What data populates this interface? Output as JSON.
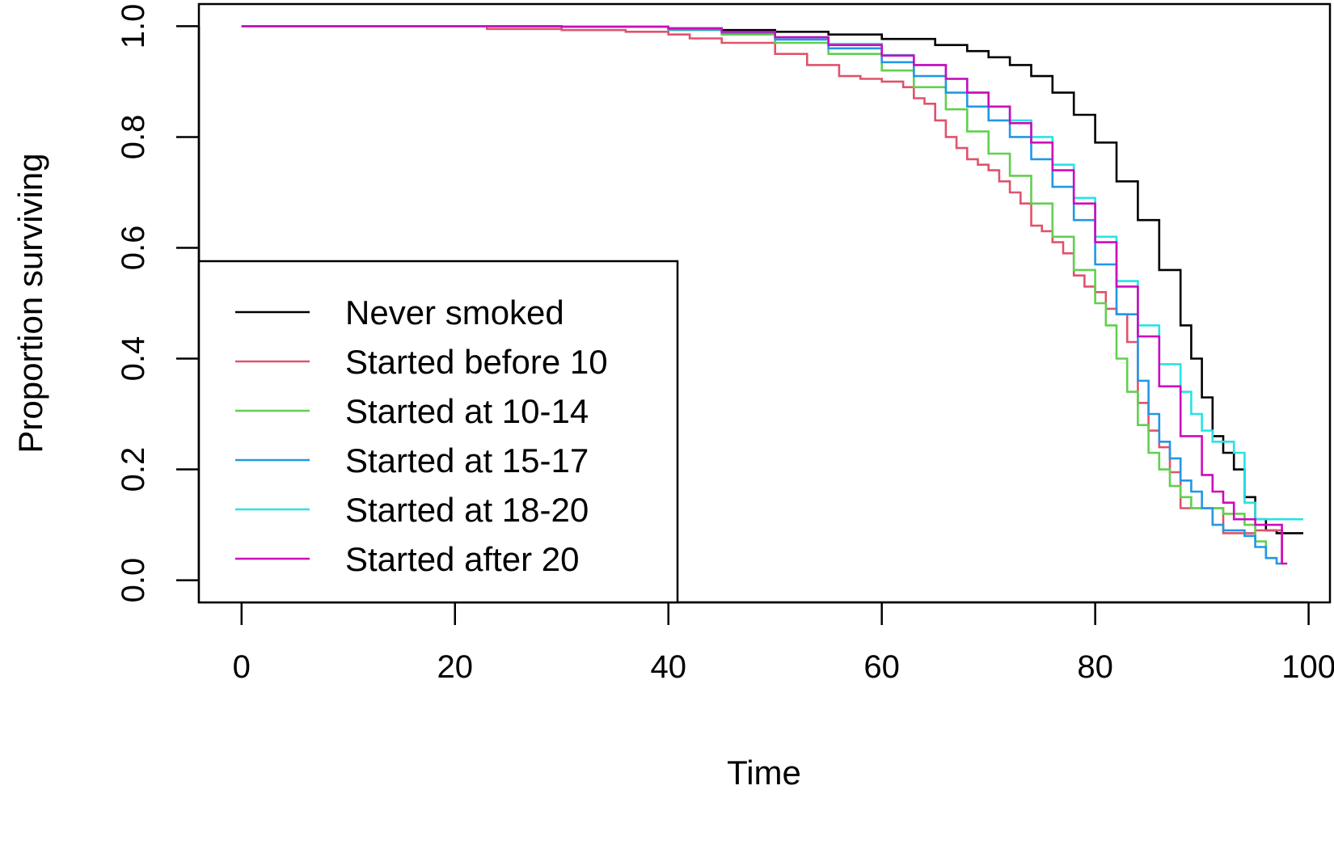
{
  "chart_data": {
    "type": "line",
    "step": true,
    "title": "",
    "xlabel": "Time",
    "ylabel": "Proportion surviving",
    "xlim": [
      -4,
      102
    ],
    "ylim": [
      -0.04,
      1.04
    ],
    "xticks": [
      0,
      20,
      40,
      60,
      80,
      100
    ],
    "xtick_labels": [
      "0",
      "20",
      "40",
      "60",
      "80",
      "100"
    ],
    "yticks": [
      0.0,
      0.2,
      0.4,
      0.6,
      0.8,
      1.0
    ],
    "ytick_labels": [
      "0.0",
      "0.2",
      "0.4",
      "0.6",
      "0.8",
      "1.0"
    ],
    "grid": false,
    "legend_position": "bottom-left",
    "series": [
      {
        "name": "Never smoked",
        "color": "#000000",
        "x": [
          0,
          20,
          30,
          40,
          45,
          50,
          55,
          60,
          65,
          68,
          70,
          72,
          74,
          76,
          78,
          80,
          82,
          84,
          86,
          88,
          89,
          90,
          91,
          92,
          93,
          94,
          95,
          96,
          97,
          99.5
        ],
        "y": [
          1.0,
          1.0,
          0.999,
          0.996,
          0.993,
          0.99,
          0.985,
          0.977,
          0.966,
          0.955,
          0.944,
          0.93,
          0.91,
          0.88,
          0.84,
          0.79,
          0.72,
          0.65,
          0.56,
          0.46,
          0.4,
          0.33,
          0.26,
          0.23,
          0.2,
          0.15,
          0.11,
          0.09,
          0.085,
          0.085
        ]
      },
      {
        "name": "Started before 10",
        "color": "#DF536B",
        "x": [
          0,
          23,
          30,
          36,
          40,
          42,
          45,
          50,
          53,
          56,
          58,
          60,
          62,
          63,
          64,
          65,
          66,
          67,
          68,
          69,
          70,
          71,
          72,
          73,
          74,
          75,
          76,
          77,
          78,
          79,
          80,
          81,
          82,
          83,
          84,
          85,
          86,
          87,
          88,
          90,
          92,
          94,
          95,
          96,
          97,
          97.5
        ],
        "y": [
          1.0,
          0.995,
          0.993,
          0.99,
          0.985,
          0.978,
          0.97,
          0.95,
          0.93,
          0.91,
          0.905,
          0.9,
          0.89,
          0.87,
          0.86,
          0.83,
          0.8,
          0.78,
          0.76,
          0.75,
          0.74,
          0.72,
          0.7,
          0.68,
          0.64,
          0.63,
          0.61,
          0.59,
          0.55,
          0.53,
          0.52,
          0.49,
          0.48,
          0.43,
          0.32,
          0.27,
          0.24,
          0.195,
          0.13,
          0.13,
          0.085,
          0.085,
          0.09,
          0.09,
          0.09,
          0.03
        ]
      },
      {
        "name": "Started at 10-14",
        "color": "#61D04F",
        "x": [
          0,
          30,
          40,
          45,
          50,
          55,
          60,
          63,
          66,
          68,
          70,
          72,
          74,
          76,
          78,
          80,
          81,
          82,
          83,
          84,
          85,
          86,
          87,
          88,
          89,
          90,
          92,
          94,
          95,
          96,
          97
        ],
        "y": [
          1.0,
          0.999,
          0.993,
          0.985,
          0.97,
          0.95,
          0.92,
          0.89,
          0.85,
          0.81,
          0.77,
          0.73,
          0.68,
          0.62,
          0.56,
          0.5,
          0.46,
          0.4,
          0.34,
          0.28,
          0.23,
          0.2,
          0.17,
          0.15,
          0.13,
          0.13,
          0.12,
          0.1,
          0.07,
          0.04,
          0.04
        ]
      },
      {
        "name": "Started at 15-17",
        "color": "#2297E6",
        "x": [
          0,
          30,
          40,
          45,
          50,
          55,
          60,
          63,
          66,
          68,
          70,
          72,
          74,
          76,
          78,
          80,
          82,
          84,
          85,
          86,
          87,
          88,
          89,
          90,
          91,
          92,
          94,
          95,
          96,
          97,
          97.5
        ],
        "y": [
          1.0,
          0.999,
          0.994,
          0.988,
          0.976,
          0.96,
          0.935,
          0.91,
          0.88,
          0.855,
          0.83,
          0.8,
          0.76,
          0.71,
          0.65,
          0.57,
          0.48,
          0.36,
          0.3,
          0.25,
          0.22,
          0.18,
          0.16,
          0.13,
          0.1,
          0.09,
          0.08,
          0.06,
          0.04,
          0.03,
          0.03
        ]
      },
      {
        "name": "Started at 18-20",
        "color": "#28E2E5",
        "x": [
          0,
          30,
          40,
          45,
          50,
          55,
          60,
          63,
          66,
          68,
          70,
          72,
          74,
          76,
          78,
          80,
          82,
          84,
          86,
          88,
          89,
          90,
          91,
          92,
          93,
          94,
          95,
          96,
          97,
          98,
          99.5
        ],
        "y": [
          1.0,
          0.999,
          0.996,
          0.99,
          0.98,
          0.968,
          0.948,
          0.93,
          0.905,
          0.88,
          0.855,
          0.83,
          0.8,
          0.75,
          0.69,
          0.62,
          0.54,
          0.46,
          0.39,
          0.34,
          0.3,
          0.27,
          0.25,
          0.25,
          0.23,
          0.14,
          0.11,
          0.11,
          0.11,
          0.11,
          0.11
        ]
      },
      {
        "name": "Started after 20",
        "color": "#CD0BBC",
        "x": [
          0,
          30,
          40,
          45,
          50,
          55,
          60,
          63,
          66,
          68,
          70,
          72,
          74,
          76,
          78,
          80,
          82,
          84,
          86,
          88,
          90,
          91,
          92,
          93,
          94,
          95,
          96,
          97,
          97.5,
          98
        ],
        "y": [
          1.0,
          0.999,
          0.996,
          0.99,
          0.98,
          0.966,
          0.947,
          0.93,
          0.905,
          0.88,
          0.855,
          0.825,
          0.79,
          0.74,
          0.68,
          0.61,
          0.53,
          0.44,
          0.35,
          0.26,
          0.19,
          0.16,
          0.14,
          0.11,
          0.11,
          0.1,
          0.1,
          0.1,
          0.03,
          0.03
        ]
      }
    ]
  }
}
